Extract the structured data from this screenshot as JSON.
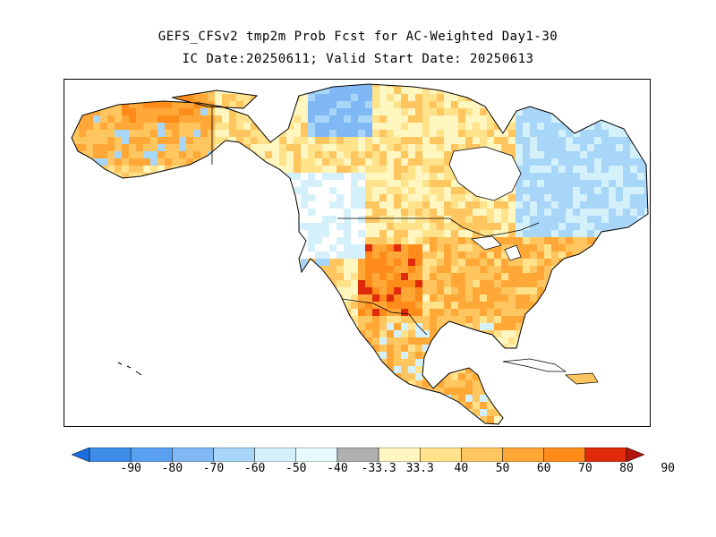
{
  "title": {
    "line1": "GEFS_CFSv2 tmp2m Prob Fcst for AC-Weighted Day1-30",
    "line2": "IC Date:20250611; Valid Start Date: 20250613"
  },
  "map": {
    "region": "North America",
    "variable": "tmp2m probability forecast"
  },
  "colorbar": {
    "labels": [
      "-90",
      "-80",
      "-70",
      "-60",
      "-50",
      "-40",
      "-33.3",
      "33.3",
      "40",
      "50",
      "60",
      "70",
      "80",
      "90"
    ],
    "colors": [
      "#1a6ee0",
      "#3c8ce8",
      "#5aa0f0",
      "#80b8f5",
      "#a8d6f8",
      "#d4f1fb",
      "#e8fbff",
      "#b0b0b0",
      "#fff6c0",
      "#ffe28a",
      "#ffc660",
      "#ffa838",
      "#ff8c1a",
      "#e02a0a",
      "#b0140a"
    ]
  }
}
